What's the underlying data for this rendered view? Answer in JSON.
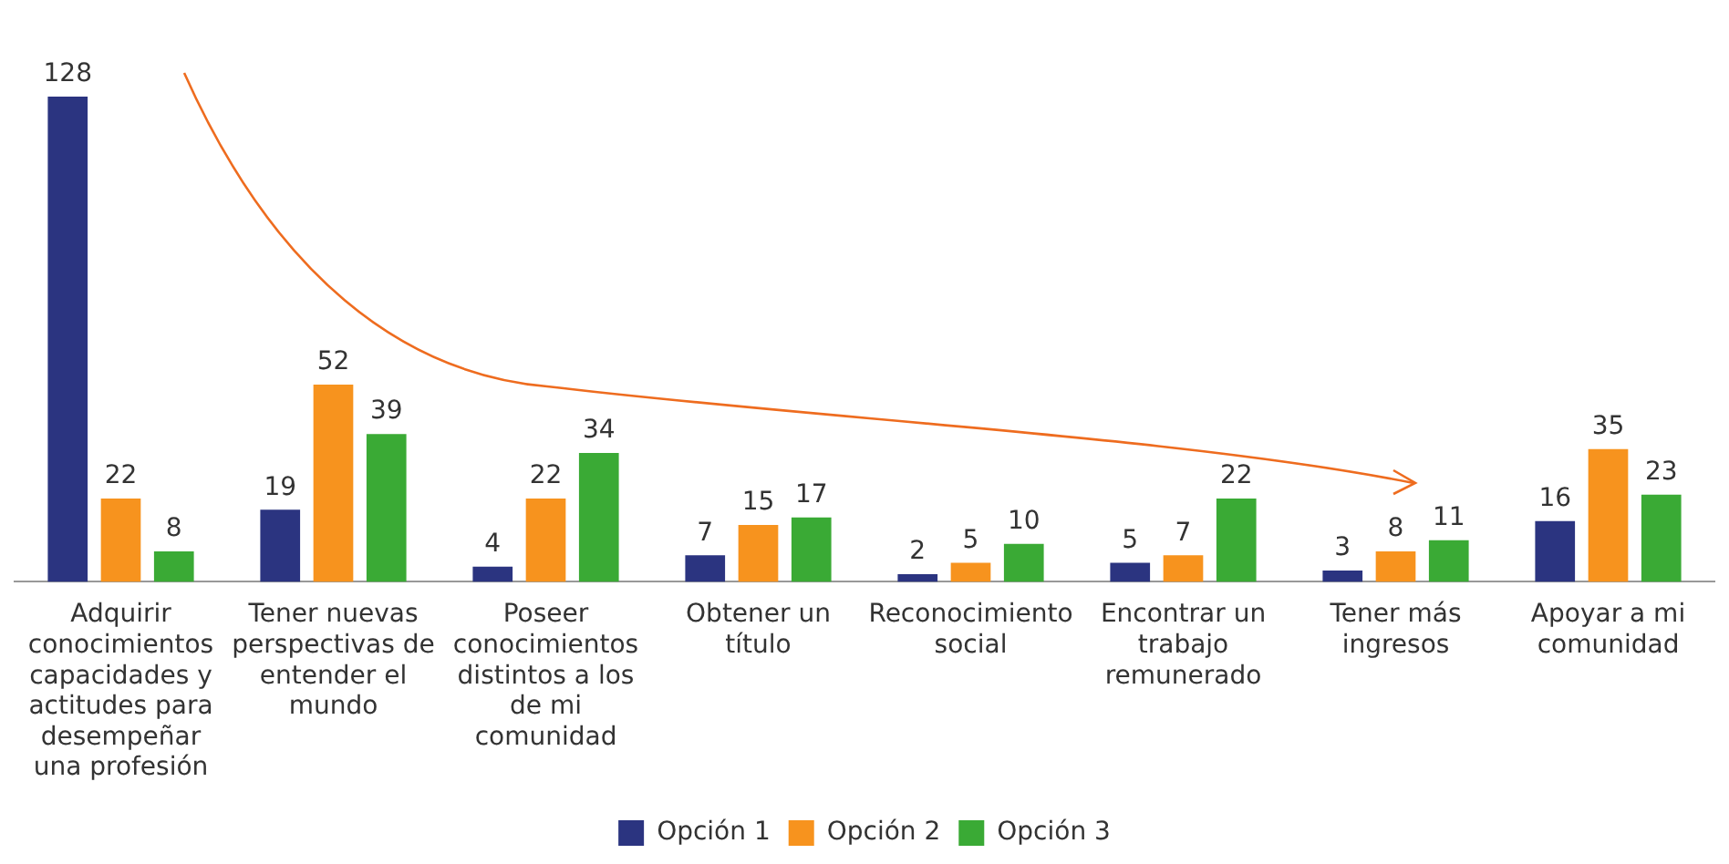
{
  "chart_data": {
    "type": "bar",
    "categories": [
      "Adquirir conocimientos capacidades y actitudes para desempeñar una profesión",
      "Tener nuevas perspectivas de entender el mundo",
      "Poseer conocimientos distintos a los de mi comunidad",
      "Obtener un título",
      "Reconocimiento social",
      "Encontrar un trabajo remunerado",
      "Tener más ingresos",
      "Apoyar a mi comunidad"
    ],
    "series": [
      {
        "name": "Opción 1",
        "color": "#2b3480",
        "values": [
          128,
          19,
          4,
          7,
          2,
          5,
          3,
          16
        ]
      },
      {
        "name": "Opción 2",
        "color": "#f7931e",
        "values": [
          22,
          52,
          22,
          15,
          5,
          7,
          8,
          35
        ]
      },
      {
        "name": "Opción 3",
        "color": "#3aaa35",
        "values": [
          8,
          39,
          34,
          17,
          10,
          22,
          11,
          23
        ]
      }
    ],
    "data_labels": true,
    "grid": false,
    "legend": "bottom"
  }
}
